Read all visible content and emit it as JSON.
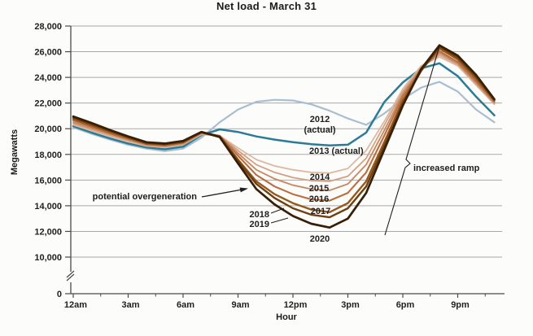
{
  "chart_data": {
    "type": "line",
    "title": "Net load - March 31",
    "xlabel": "Hour",
    "ylabel": "Megawatts",
    "x_unit": "hour of day, 0-23",
    "x_tick_labels": [
      "12am",
      "3am",
      "6am",
      "9am",
      "12pm",
      "3pm",
      "6pm",
      "9pm"
    ],
    "x_tick_hours": [
      0,
      3,
      6,
      9,
      12,
      15,
      18,
      21
    ],
    "x_minor_tick_hours": [
      1.5,
      4.5,
      7.5,
      10.5,
      13.5,
      16.5,
      19.5,
      22.5
    ],
    "x_axis_end_hour": 23.6,
    "y_ticks": [
      {
        "value": 28000,
        "label": "28,000"
      },
      {
        "value": 26000,
        "label": "26,000"
      },
      {
        "value": 24000,
        "label": "24,000"
      },
      {
        "value": 22000,
        "label": "22,000"
      },
      {
        "value": 20000,
        "label": "20,000"
      },
      {
        "value": 18000,
        "label": "18,000"
      },
      {
        "value": 16000,
        "label": "16,000"
      },
      {
        "value": 14000,
        "label": "14,000"
      },
      {
        "value": 12000,
        "label": "12,000"
      },
      {
        "value": 10000,
        "label": "10,000"
      },
      {
        "value": 0,
        "label": "0"
      }
    ],
    "y_axis_break_between": [
      0,
      10000
    ],
    "grid": true,
    "legend_position": "inline-labels",
    "series": [
      {
        "name": "2012 (actual)",
        "color": "#a9bfd1",
        "width": 2.2,
        "values": [
          20100,
          19600,
          19150,
          18750,
          18450,
          18250,
          18450,
          19300,
          20500,
          21500,
          22100,
          22250,
          22200,
          21900,
          21400,
          20800,
          20300,
          21200,
          22300,
          23200,
          23650,
          22900,
          21500,
          20500
        ]
      },
      {
        "name": "2013 (actual)",
        "color": "#2b7b97",
        "width": 2.5,
        "values": [
          20200,
          19700,
          19250,
          18850,
          18550,
          18400,
          18600,
          19500,
          19950,
          19750,
          19400,
          19150,
          18950,
          18800,
          18700,
          18750,
          19700,
          22100,
          23600,
          24700,
          25100,
          24100,
          22500,
          21050
        ]
      },
      {
        "name": "2014",
        "color": "#dcb9a0",
        "width": 1.8,
        "values": [
          20300,
          19850,
          19400,
          19000,
          18650,
          18550,
          18750,
          19550,
          19450,
          18500,
          17600,
          17100,
          16800,
          16600,
          16550,
          16900,
          18300,
          20600,
          23100,
          24900,
          25600,
          24900,
          23400,
          21900
        ]
      },
      {
        "name": "2015",
        "color": "#d2a184",
        "width": 1.8,
        "values": [
          20400,
          19950,
          19500,
          19100,
          18700,
          18600,
          18800,
          19600,
          19450,
          18300,
          17200,
          16600,
          16200,
          15950,
          15900,
          16300,
          17700,
          20300,
          22900,
          24800,
          25750,
          25000,
          23500,
          21950
        ]
      },
      {
        "name": "2016",
        "color": "#c68a64",
        "width": 1.9,
        "values": [
          20500,
          20050,
          19600,
          19150,
          18750,
          18650,
          18850,
          19650,
          19450,
          18100,
          16800,
          16100,
          15600,
          15300,
          15200,
          15700,
          17200,
          19900,
          22700,
          24700,
          25900,
          25100,
          23600,
          22050
        ]
      },
      {
        "name": "2017",
        "color": "#b96f40",
        "width": 2.1,
        "values": [
          20650,
          20150,
          19650,
          19200,
          18800,
          18700,
          18900,
          19700,
          19450,
          17900,
          16400,
          15500,
          14900,
          14500,
          14400,
          15000,
          16600,
          19500,
          22500,
          24650,
          26050,
          25200,
          23700,
          22100
        ]
      },
      {
        "name": "2018",
        "color": "#97581d",
        "width": 2.4,
        "values": [
          20750,
          20250,
          19750,
          19300,
          18850,
          18750,
          18950,
          19700,
          19400,
          17600,
          15900,
          14900,
          14200,
          13700,
          13500,
          14200,
          15900,
          19000,
          22200,
          24550,
          26250,
          25400,
          23900,
          22200
        ]
      },
      {
        "name": "2019",
        "color": "#6f4010",
        "width": 2.4,
        "values": [
          20850,
          20350,
          19850,
          19350,
          18900,
          18800,
          19000,
          19750,
          19400,
          17500,
          15700,
          14600,
          13800,
          13300,
          13100,
          13800,
          15500,
          18700,
          22000,
          24500,
          26400,
          25550,
          24050,
          22250
        ]
      },
      {
        "name": "2020",
        "color": "#371e06",
        "width": 2.7,
        "values": [
          20950,
          20450,
          19900,
          19400,
          18950,
          18850,
          19050,
          19750,
          19350,
          17300,
          15300,
          14100,
          13200,
          12600,
          12300,
          13000,
          15000,
          18400,
          21800,
          24650,
          26500,
          25700,
          24200,
          22300
        ]
      }
    ],
    "series_labels": [
      {
        "text": "2012",
        "x": 393,
        "y": 150,
        "anchor": "middle"
      },
      {
        "text": "(actual)",
        "x": 393,
        "y": 163,
        "anchor": "middle"
      },
      {
        "text": "2013 (actual)",
        "x": 380,
        "y": 189,
        "anchor": "start"
      },
      {
        "text": "2014",
        "x": 393,
        "y": 221,
        "anchor": "middle"
      },
      {
        "text": "2015",
        "x": 392,
        "y": 235,
        "anchor": "middle"
      },
      {
        "text": "2016",
        "x": 392,
        "y": 248,
        "anchor": "middle"
      },
      {
        "text": "2017",
        "x": 394,
        "y": 263,
        "anchor": "middle"
      },
      {
        "text": "2018",
        "x": 331,
        "y": 267,
        "anchor": "end"
      },
      {
        "text": "2019",
        "x": 331,
        "y": 279,
        "anchor": "end"
      },
      {
        "text": "2020",
        "x": 393,
        "y": 297,
        "anchor": "middle"
      }
    ],
    "leader_lines": [
      {
        "points": [
          [
            333,
            262
          ],
          [
            349,
            256
          ]
        ]
      },
      {
        "points": [
          [
            333,
            274
          ],
          [
            354,
            268
          ]
        ]
      }
    ],
    "annotations": [
      {
        "id": "overgeneration",
        "text": "potential overgeneration",
        "text_x": 242,
        "text_y": 245,
        "anchor": "end",
        "arrow_from": [
          248,
          242
        ],
        "arrow_to": [
          303,
          232
        ]
      },
      {
        "id": "ramp",
        "text": "increased ramp",
        "text_x": 508,
        "text_y": 210,
        "anchor": "start",
        "line_points": [
          [
            473,
            289
          ],
          [
            498,
            206
          ],
          [
            504,
            201
          ],
          [
            499,
            196
          ],
          [
            540,
            57
          ]
        ]
      }
    ],
    "colors": {
      "grid": "#a9a9a9",
      "axis": "#4a4a4a",
      "text": "#1f1f1f",
      "background": "#fcfcfa"
    }
  }
}
